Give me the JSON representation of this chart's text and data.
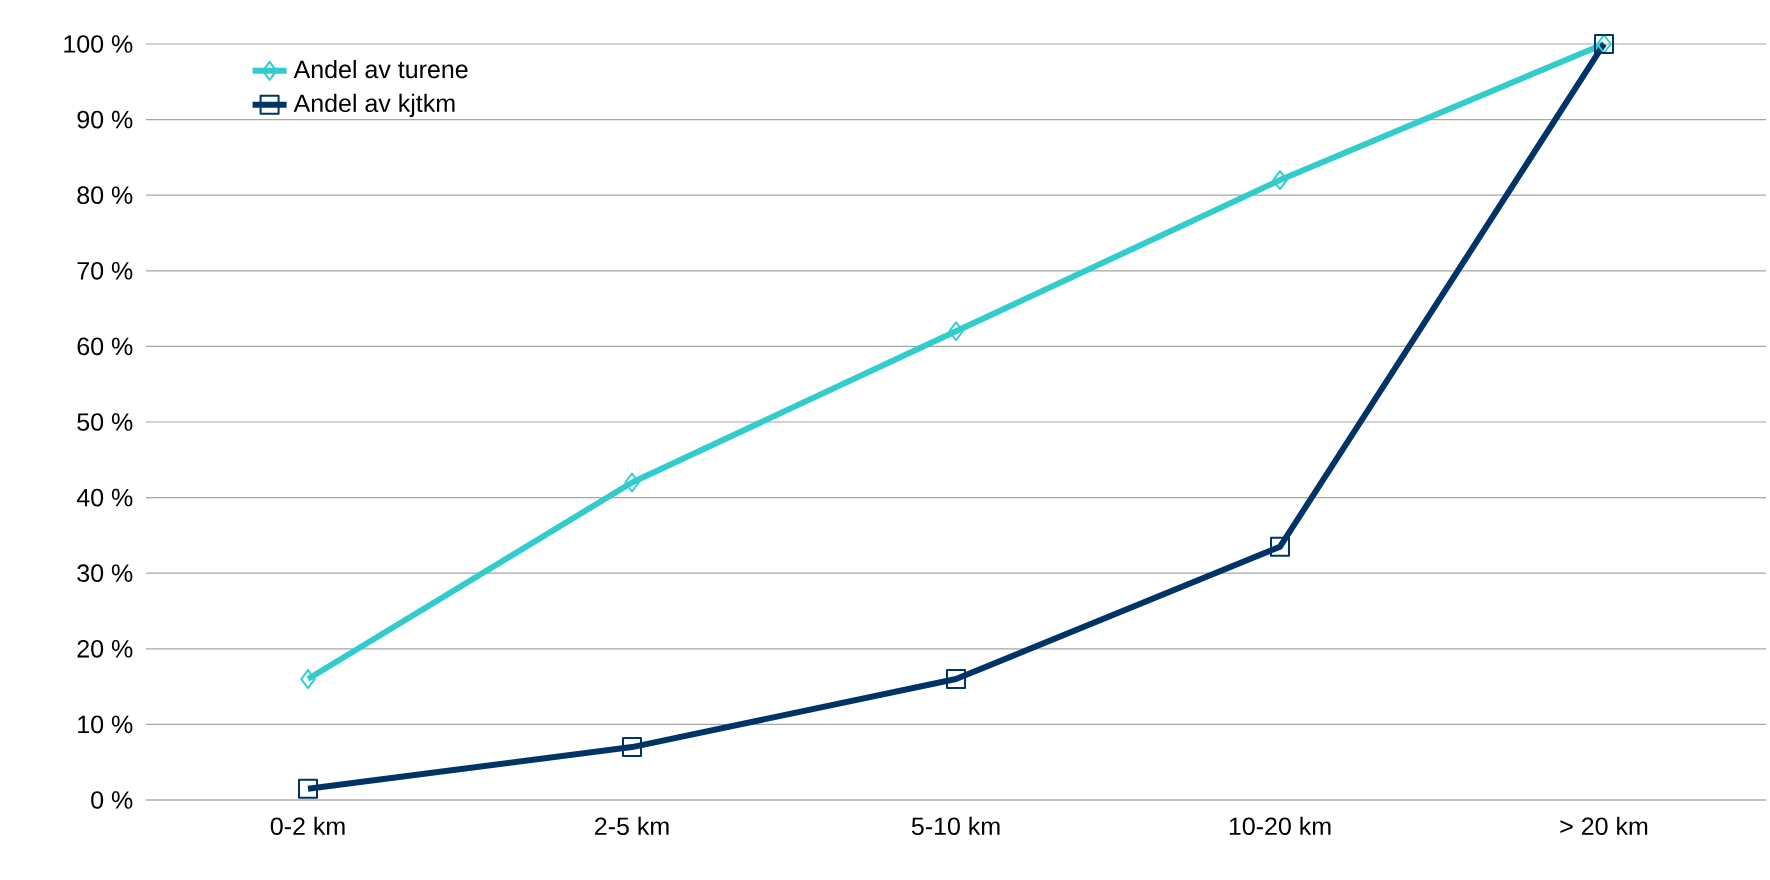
{
  "chart_data": {
    "type": "line",
    "categories": [
      "0-2 km",
      "2-5 km",
      "5-10 km",
      "10-20 km",
      "> 20 km"
    ],
    "series": [
      {
        "name": "Andel av turene",
        "color": "#33cccc",
        "marker": "diamond",
        "values": [
          16,
          42,
          62,
          82,
          100
        ]
      },
      {
        "name": "Andel av kjtkm",
        "color": "#003366",
        "marker": "square",
        "values": [
          1.5,
          7,
          16,
          33.5,
          100
        ]
      }
    ],
    "ylim": [
      0,
      100
    ],
    "yticks": [
      {
        "value": 0,
        "label": "0 %"
      },
      {
        "value": 10,
        "label": "10 %"
      },
      {
        "value": 20,
        "label": "20 %"
      },
      {
        "value": 30,
        "label": "30 %"
      },
      {
        "value": 40,
        "label": "40 %"
      },
      {
        "value": 50,
        "label": "50 %"
      },
      {
        "value": 60,
        "label": "60 %"
      },
      {
        "value": 70,
        "label": "70 %"
      },
      {
        "value": 80,
        "label": "80 %"
      },
      {
        "value": 90,
        "label": "90 %"
      },
      {
        "value": 100,
        "label": "100 %"
      }
    ],
    "grid": "y",
    "legend": "top left",
    "line_style": "solid"
  }
}
